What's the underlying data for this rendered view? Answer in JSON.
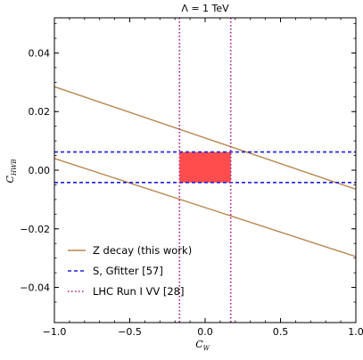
{
  "chart_data": {
    "type": "line",
    "title": "Λ = 1 TeV",
    "xlabel": "C",
    "xlabel_sub": "W",
    "ylabel": "C",
    "ylabel_sub": "HWB",
    "xlim": [
      -1.0,
      1.0
    ],
    "ylim": [
      -0.052,
      0.052
    ],
    "xticks": [
      -1.0,
      -0.5,
      0.0,
      0.5,
      1.0
    ],
    "xtick_labels": [
      "−1.0",
      "−0.5",
      "0.0",
      "0.5",
      "1.0"
    ],
    "yticks": [
      -0.04,
      -0.02,
      0.0,
      0.02,
      0.04
    ],
    "ytick_labels": [
      "−0.04",
      "−0.02",
      "0.00",
      "0.02",
      "0.04"
    ],
    "series": [
      {
        "name": "Z decay (this work)",
        "style": "solid",
        "color": "#b8864f",
        "lines": [
          {
            "x": [
              -1.0,
              1.0
            ],
            "y": [
              0.0285,
              -0.0065
            ]
          },
          {
            "x": [
              -1.0,
              1.0
            ],
            "y": [
              0.004,
              -0.0295
            ]
          }
        ]
      },
      {
        "name": "S, Gfitter [57]",
        "style": "dashed",
        "color": "#1f1fe0",
        "hlines": [
          0.0062,
          -0.0042
        ]
      },
      {
        "name": "LHC Run I VV [28]",
        "style": "dotted",
        "color": "#b2188c",
        "vlines": [
          -0.17,
          0.17
        ]
      }
    ],
    "overlap_region": {
      "x": [
        -0.17,
        0.17
      ],
      "y": [
        -0.0042,
        0.0062
      ],
      "color": "#ff4d4d"
    },
    "grid": false,
    "legend_position": "lower-left"
  }
}
